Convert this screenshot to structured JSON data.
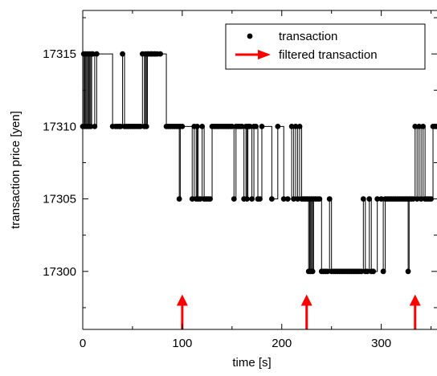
{
  "chart_data": {
    "type": "scatter",
    "xlabel": "time [s]",
    "ylabel": "transaction price [yen]",
    "xlim": [
      0,
      356
    ],
    "ylim": [
      17296,
      17318
    ],
    "x_ticks": [
      0,
      100,
      200,
      300
    ],
    "y_ticks": [
      17300,
      17305,
      17310,
      17315
    ],
    "grid": false,
    "legend_position": "top-right",
    "series": [
      {
        "name": "transaction",
        "kind": "step-line-with-markers",
        "color": "#000000",
        "points": [
          [
            0,
            17310
          ],
          [
            1,
            17315
          ],
          [
            2,
            17310
          ],
          [
            3,
            17315
          ],
          [
            4,
            17310
          ],
          [
            5,
            17315
          ],
          [
            6,
            17310
          ],
          [
            7,
            17315
          ],
          [
            8,
            17310
          ],
          [
            9,
            17315
          ],
          [
            10,
            17315
          ],
          [
            12,
            17310
          ],
          [
            14,
            17315
          ],
          [
            30,
            17310
          ],
          [
            33,
            17310
          ],
          [
            35,
            17310
          ],
          [
            37,
            17310
          ],
          [
            38,
            17310
          ],
          [
            40,
            17315
          ],
          [
            42,
            17310
          ],
          [
            44,
            17310
          ],
          [
            46,
            17310
          ],
          [
            48,
            17310
          ],
          [
            50,
            17310
          ],
          [
            52,
            17310
          ],
          [
            54,
            17310
          ],
          [
            56,
            17310
          ],
          [
            58,
            17310
          ],
          [
            60,
            17315
          ],
          [
            62,
            17310
          ],
          [
            63,
            17315
          ],
          [
            64,
            17310
          ],
          [
            65,
            17315
          ],
          [
            66,
            17315
          ],
          [
            68,
            17315
          ],
          [
            69,
            17315
          ],
          [
            70,
            17315
          ],
          [
            72,
            17315
          ],
          [
            73,
            17315
          ],
          [
            75,
            17315
          ],
          [
            78,
            17315
          ],
          [
            84,
            17310
          ],
          [
            86,
            17310
          ],
          [
            88,
            17310
          ],
          [
            90,
            17310
          ],
          [
            92,
            17310
          ],
          [
            94,
            17310
          ],
          [
            96,
            17310
          ],
          [
            97,
            17305
          ],
          [
            98,
            17310
          ],
          [
            100,
            17310
          ],
          [
            110,
            17305
          ],
          [
            112,
            17310
          ],
          [
            114,
            17305
          ],
          [
            115,
            17310
          ],
          [
            116,
            17305
          ],
          [
            118,
            17305
          ],
          [
            120,
            17310
          ],
          [
            122,
            17305
          ],
          [
            124,
            17305
          ],
          [
            126,
            17305
          ],
          [
            128,
            17305
          ],
          [
            130,
            17310
          ],
          [
            132,
            17310
          ],
          [
            134,
            17310
          ],
          [
            136,
            17310
          ],
          [
            138,
            17310
          ],
          [
            140,
            17310
          ],
          [
            142,
            17310
          ],
          [
            144,
            17310
          ],
          [
            146,
            17310
          ],
          [
            148,
            17310
          ],
          [
            150,
            17310
          ],
          [
            152,
            17305
          ],
          [
            154,
            17310
          ],
          [
            156,
            17310
          ],
          [
            158,
            17310
          ],
          [
            160,
            17310
          ],
          [
            162,
            17305
          ],
          [
            164,
            17310
          ],
          [
            165,
            17305
          ],
          [
            166,
            17310
          ],
          [
            167,
            17310
          ],
          [
            168,
            17310
          ],
          [
            170,
            17305
          ],
          [
            172,
            17310
          ],
          [
            174,
            17310
          ],
          [
            176,
            17305
          ],
          [
            178,
            17305
          ],
          [
            180,
            17310
          ],
          [
            190,
            17305
          ],
          [
            196,
            17310
          ],
          [
            202,
            17305
          ],
          [
            206,
            17305
          ],
          [
            210,
            17310
          ],
          [
            212,
            17305
          ],
          [
            214,
            17310
          ],
          [
            216,
            17305
          ],
          [
            218,
            17310
          ],
          [
            220,
            17305
          ],
          [
            222,
            17305
          ],
          [
            224,
            17305
          ],
          [
            226,
            17305
          ],
          [
            227,
            17300
          ],
          [
            228,
            17305
          ],
          [
            229,
            17300
          ],
          [
            230,
            17305
          ],
          [
            231,
            17300
          ],
          [
            232,
            17305
          ],
          [
            234,
            17305
          ],
          [
            236,
            17305
          ],
          [
            238,
            17305
          ],
          [
            240,
            17300
          ],
          [
            242,
            17300
          ],
          [
            244,
            17300
          ],
          [
            246,
            17300
          ],
          [
            248,
            17305
          ],
          [
            250,
            17300
          ],
          [
            252,
            17300
          ],
          [
            254,
            17300
          ],
          [
            256,
            17300
          ],
          [
            258,
            17300
          ],
          [
            260,
            17300
          ],
          [
            262,
            17300
          ],
          [
            264,
            17300
          ],
          [
            266,
            17300
          ],
          [
            268,
            17300
          ],
          [
            270,
            17300
          ],
          [
            272,
            17300
          ],
          [
            274,
            17300
          ],
          [
            276,
            17300
          ],
          [
            278,
            17300
          ],
          [
            280,
            17300
          ],
          [
            282,
            17305
          ],
          [
            284,
            17300
          ],
          [
            286,
            17300
          ],
          [
            288,
            17305
          ],
          [
            290,
            17300
          ],
          [
            292,
            17300
          ],
          [
            296,
            17305
          ],
          [
            300,
            17305
          ],
          [
            302,
            17300
          ],
          [
            304,
            17305
          ],
          [
            306,
            17305
          ],
          [
            308,
            17305
          ],
          [
            310,
            17305
          ],
          [
            312,
            17305
          ],
          [
            314,
            17305
          ],
          [
            316,
            17305
          ],
          [
            318,
            17305
          ],
          [
            320,
            17305
          ],
          [
            322,
            17305
          ],
          [
            324,
            17305
          ],
          [
            326,
            17305
          ],
          [
            327,
            17300
          ],
          [
            328,
            17305
          ],
          [
            330,
            17305
          ],
          [
            332,
            17305
          ],
          [
            334,
            17310
          ],
          [
            336,
            17305
          ],
          [
            338,
            17310
          ],
          [
            340,
            17305
          ],
          [
            342,
            17310
          ],
          [
            344,
            17305
          ],
          [
            346,
            17305
          ],
          [
            348,
            17305
          ],
          [
            350,
            17305
          ],
          [
            352,
            17310
          ],
          [
            354,
            17310
          ],
          [
            356,
            17310
          ]
        ]
      },
      {
        "name": "filtered transaction",
        "kind": "arrow-marker",
        "color": "#ff0000",
        "x": [
          100,
          225,
          334
        ]
      }
    ]
  }
}
